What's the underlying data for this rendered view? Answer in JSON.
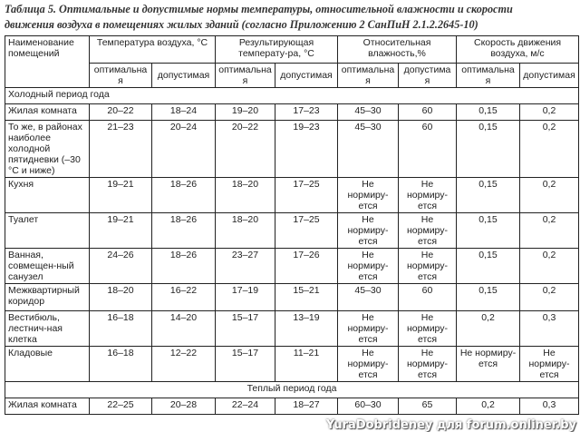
{
  "title": {
    "line1": "Таблица 5. Оптимальные и допустимые нормы температуры, относительной влажности и скорости",
    "line2": "движения воздуха в помещениях жилых зданий (согласно Приложению 2 СанПиН 2.1.2.2645-10)"
  },
  "header": {
    "room": "Наименование помещений",
    "groups": [
      "Температура воздуха, °С",
      "Результирующая температу-ра, °С",
      "Относительная влажность,%",
      "Скорость движения воздуха, м/с"
    ],
    "sub": [
      "оптимальная",
      "допустимая",
      "оптимальная",
      "допустимая",
      "оптимальная",
      "допустимая",
      "оптимальная",
      "допустимая"
    ]
  },
  "cold_label": "Холодный период года",
  "cold_rows": [
    {
      "name": "Жилая комната",
      "v": [
        "20–22",
        "18–24",
        "19–20",
        "17–23",
        "45–30",
        "60",
        "0,15",
        "0,2"
      ]
    },
    {
      "name": "То же, в районах наиболее холодной пятидневки (–30 °С и ниже)",
      "v": [
        "21–23",
        "20–24",
        "20–22",
        "19–23",
        "45–30",
        "60",
        "0,15",
        "0,2"
      ]
    },
    {
      "name": "Кухня",
      "v": [
        "19–21",
        "18–26",
        "18–20",
        "17–25",
        "Не нормиру-ется",
        "Не нормиру-ется",
        "0,15",
        "0,2"
      ]
    },
    {
      "name": "Туалет",
      "v": [
        "19–21",
        "18–26",
        "18–20",
        "17–25",
        "Не нормиру-ется",
        "Не нормиру-ется",
        "0,15",
        "0,2"
      ]
    },
    {
      "name": "Ванная, совмещен-ный санузел",
      "v": [
        "24–26",
        "18–26",
        "23–27",
        "17–26",
        "Не нормиру-ется",
        "Не нормиру-ется",
        "0,15",
        "0,2"
      ]
    },
    {
      "name": "Межквартирный коридор",
      "v": [
        "18–20",
        "16–22",
        "17–19",
        "15–21",
        "45–30",
        "60",
        "0,15",
        "0,2"
      ]
    },
    {
      "name": "Вестибюль, лестнич-ная клетка",
      "v": [
        "16–18",
        "14–20",
        "15–17",
        "13–19",
        "Не нормиру-ется",
        "Не нормиру-ется",
        "0,2",
        "0,3"
      ]
    },
    {
      "name": "Кладовые",
      "v": [
        "16–18",
        "12–22",
        "15–17",
        "11–21",
        "Не нормиру-ется",
        "Не нормиру-ется",
        "Не нормиру-ется",
        "Не нормиру-ется"
      ]
    }
  ],
  "warm_label": "Теплый период года",
  "warm_rows": [
    {
      "name": "Жилая комната",
      "v": [
        "22–25",
        "20–28",
        "22–24",
        "18–27",
        "60–30",
        "65",
        "0,2",
        "0,3"
      ]
    }
  ],
  "watermark": "YuraDobrideney для forum.onliner.by"
}
